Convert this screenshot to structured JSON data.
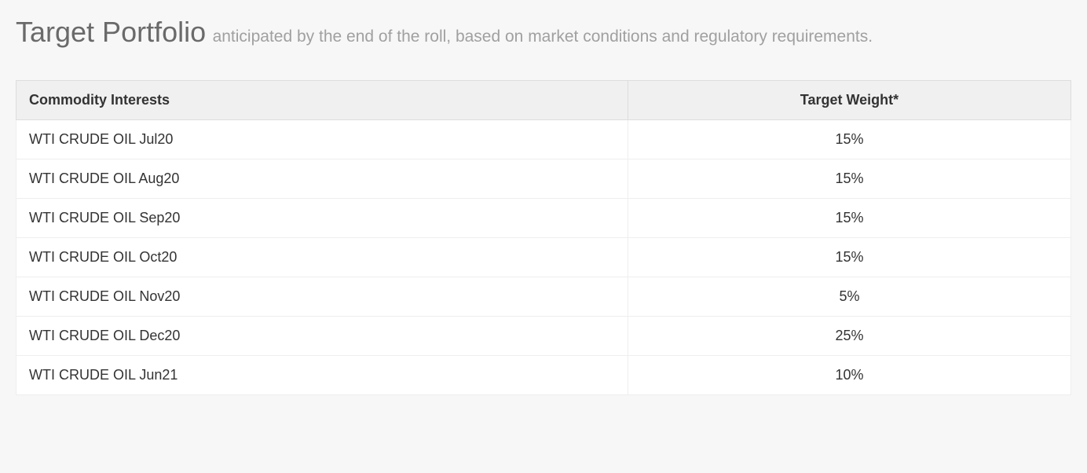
{
  "header": {
    "title": "Target Portfolio",
    "subtitle": "anticipated by the end of the roll, based on market conditions and regulatory requirements."
  },
  "table": {
    "type": "table",
    "background_color": "#ffffff",
    "border_color": "#dddddd",
    "header_background": "#f0f0f0",
    "row_border_color": "#eeeeee",
    "text_color": "#333333",
    "header_fontsize": 18,
    "cell_fontsize": 18,
    "columns": [
      {
        "key": "commodity",
        "label": "Commodity Interests",
        "align": "left",
        "width": "58%"
      },
      {
        "key": "weight",
        "label": "Target Weight*",
        "align": "center",
        "width": "42%"
      }
    ],
    "rows": [
      {
        "commodity": "WTI CRUDE OIL Jul20",
        "weight": "15%"
      },
      {
        "commodity": "WTI CRUDE OIL Aug20",
        "weight": "15%"
      },
      {
        "commodity": "WTI CRUDE OIL Sep20",
        "weight": "15%"
      },
      {
        "commodity": "WTI CRUDE OIL Oct20",
        "weight": "15%"
      },
      {
        "commodity": "WTI CRUDE OIL Nov20",
        "weight": "5%"
      },
      {
        "commodity": "WTI CRUDE OIL Dec20",
        "weight": "25%"
      },
      {
        "commodity": "WTI CRUDE OIL Jun21",
        "weight": "10%"
      }
    ]
  }
}
